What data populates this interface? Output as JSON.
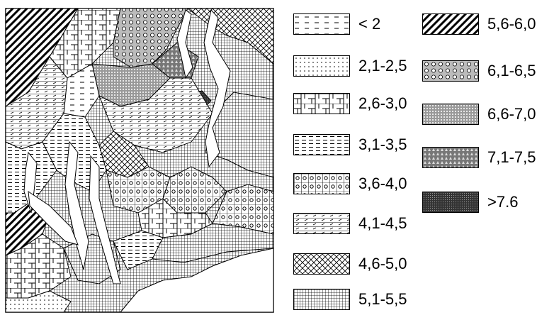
{
  "legend": [
    {
      "label": "< 2",
      "pattern": "dash-sparse"
    },
    {
      "label": "2,1-2,5",
      "pattern": "dots"
    },
    {
      "label": "2,6-3,0",
      "pattern": "blocks"
    },
    {
      "label": "3,1-3,5",
      "pattern": "dash-dense"
    },
    {
      "label": "3,6-4,0",
      "pattern": "circles"
    },
    {
      "label": "4,1-4,5",
      "pattern": "hlines-diag"
    },
    {
      "label": "4,6-5,0",
      "pattern": "crosshatch"
    },
    {
      "label": "5,1-5,5",
      "pattern": "grid"
    },
    {
      "label": "5,6-6,0",
      "pattern": "diag-bold"
    },
    {
      "label": "6,1-6,5",
      "pattern": "hex"
    },
    {
      "label": "6,6-7,0",
      "pattern": "grid-dense"
    },
    {
      "label": "7,1-7,5",
      "pattern": "tri"
    },
    {
      "label": ">7.6",
      "pattern": "dark"
    }
  ]
}
